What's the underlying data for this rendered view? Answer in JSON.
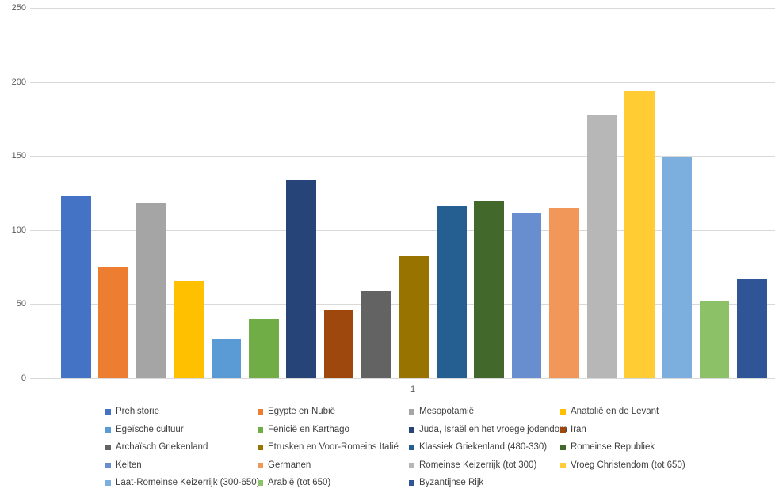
{
  "chart_data": {
    "type": "bar",
    "title": "",
    "xlabel": "",
    "ylabel": "",
    "categories": [
      "1"
    ],
    "x_tick_label": "1",
    "ylim": [
      0,
      250
    ],
    "yticks": [
      0,
      50,
      100,
      150,
      200,
      250
    ],
    "ytick_labels": [
      "0",
      "50",
      "100",
      "150",
      "200",
      "250"
    ],
    "grid": true,
    "gridline_color": "#d9d9d9",
    "axis_text_color": "#595959",
    "legend_text_color": "#404040",
    "legend_position": "bottom",
    "series": [
      {
        "name": "Prehistorie",
        "value": 123,
        "color": "#4472c4"
      },
      {
        "name": "Egypte en Nubië",
        "value": 75,
        "color": "#ed7d31"
      },
      {
        "name": "Mesopotamië",
        "value": 118,
        "color": "#a5a5a5"
      },
      {
        "name": "Anatolië en de Levant",
        "value": 66,
        "color": "#ffc000"
      },
      {
        "name": "Egeïsche cultuur",
        "value": 26,
        "color": "#5b9bd5"
      },
      {
        "name": "Fenicië en Karthago",
        "value": 40,
        "color": "#70ad47"
      },
      {
        "name": "Juda, Israël en het vroege jodendom",
        "value": 134,
        "color": "#264478"
      },
      {
        "name": "Iran",
        "value": 46,
        "color": "#9e480e"
      },
      {
        "name": "Archaïsch Griekenland",
        "value": 59,
        "color": "#636363"
      },
      {
        "name": "Etrusken en Voor-Romeins Italië",
        "value": 83,
        "color": "#997300"
      },
      {
        "name": "Klassiek Griekenland (480-330)",
        "value": 116,
        "color": "#255e91"
      },
      {
        "name": "Romeinse Republiek",
        "value": 120,
        "color": "#43682b"
      },
      {
        "name": "Kelten",
        "value": 112,
        "color": "#698ed0"
      },
      {
        "name": "Germanen",
        "value": 115,
        "color": "#f1975a"
      },
      {
        "name": "Romeinse Keizerrijk (tot 300)",
        "value": 178,
        "color": "#b7b7b7"
      },
      {
        "name": "Vroeg Christendom (tot 650)",
        "value": 194,
        "color": "#ffcd33"
      },
      {
        "name": "Laat-Romeinse Keizerrijk (300-650)",
        "value": 150,
        "color": "#7cafdd"
      },
      {
        "name": "Arabië (tot 650)",
        "value": 52,
        "color": "#8cc168"
      },
      {
        "name": "Byzantijnse Rijk",
        "value": 67,
        "color": "#2f5597"
      }
    ]
  }
}
